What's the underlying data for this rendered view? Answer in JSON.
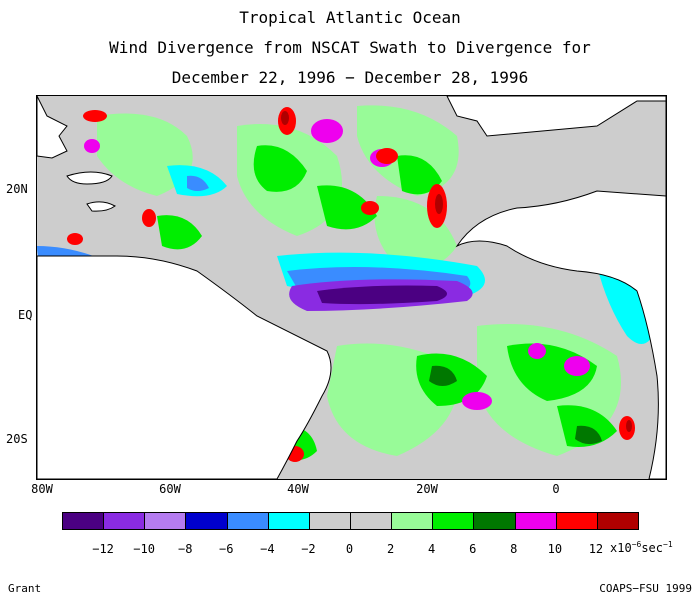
{
  "title": {
    "line1": "Tropical Atlantic Ocean",
    "line2": "Wind Divergence from NSCAT Swath to Divergence for",
    "line3": "December 22, 1996 − December 28, 1996"
  },
  "axes": {
    "lat_labels": [
      "20N",
      "EQ",
      "20S"
    ],
    "lon_labels": [
      "80W",
      "60W",
      "40W",
      "20W",
      "0"
    ]
  },
  "colorbar": {
    "colors": [
      "#4b0082",
      "#8a2be2",
      "#b57cf0",
      "#0000cd",
      "#3a8cff",
      "#00ffff",
      "#cdcdcd",
      "#cdcdcd",
      "#98fb98",
      "#00ee00",
      "#007800",
      "#ee00ee",
      "#ff0000",
      "#b00000"
    ],
    "ticks": [
      "−12",
      "−10",
      "−8",
      "−6",
      "−4",
      "−2",
      "0",
      "2",
      "4",
      "6",
      "8",
      "10",
      "12"
    ],
    "unit_prefix": "x10",
    "unit_exp": "−6",
    "unit_suffix": "sec",
    "unit_suffix_exp": "−1"
  },
  "footer": {
    "left": "Grant",
    "right": "COAPS−FSU 1999"
  }
}
